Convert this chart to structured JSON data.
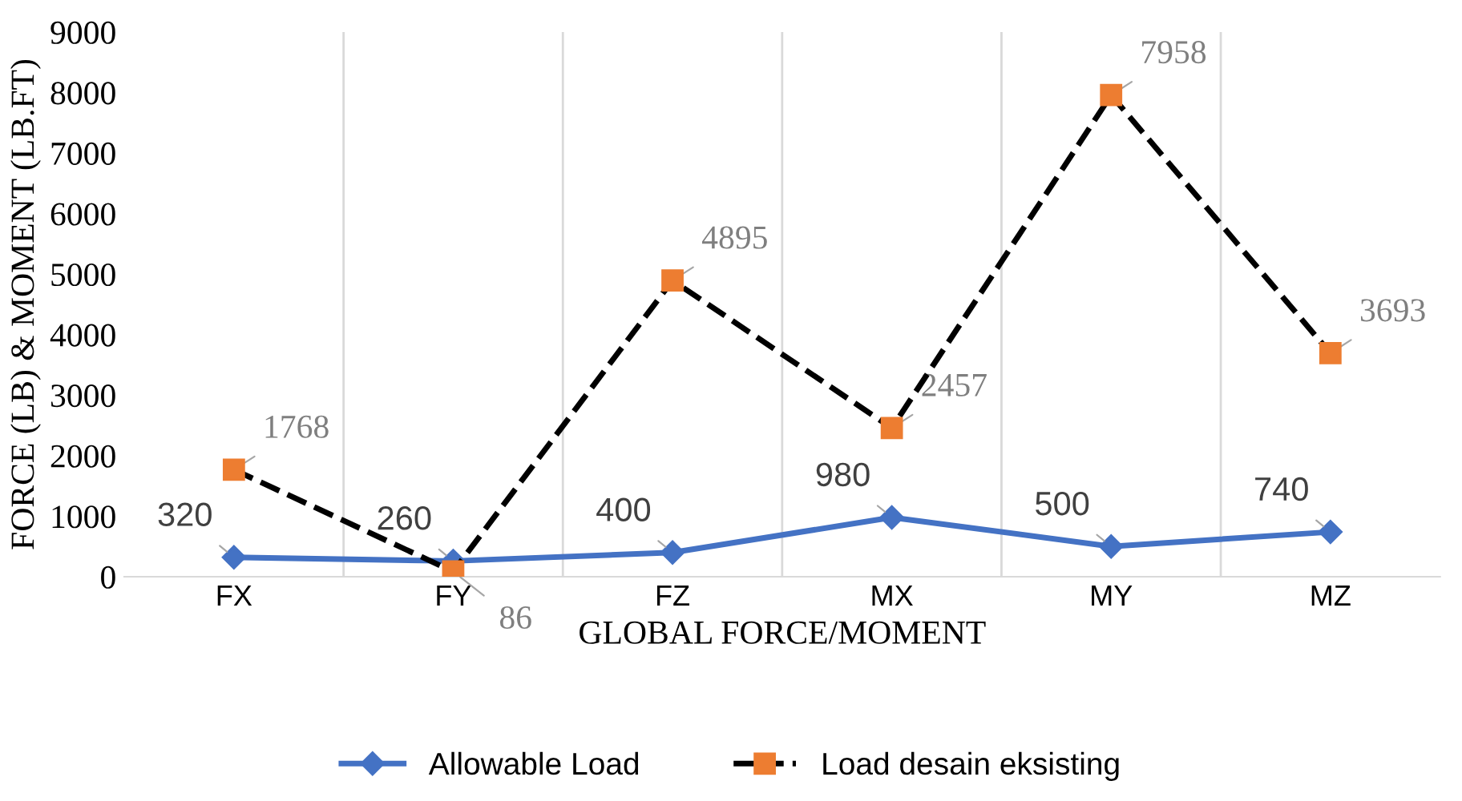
{
  "chart_data": {
    "type": "line",
    "xlabel": "GLOBAL FORCE/MOMENT",
    "ylabel": "FORCE (LB) & MOMENT (LB.FT)",
    "categories": [
      "FX",
      "FY",
      "FZ",
      "MX",
      "MY",
      "MZ"
    ],
    "series": [
      {
        "name": "Allowable Load",
        "color": "#4472c4",
        "marker": "diamond",
        "line_style": "solid",
        "values": [
          320,
          260,
          400,
          980,
          500,
          740
        ]
      },
      {
        "name": "Load desain eksisting",
        "color": "#000000",
        "marker": "square",
        "colors": [
          "#ed7d31",
          "#ed7d31",
          "#ed7d31",
          "#ed7d31",
          "#ed7d31",
          "#ed7d31"
        ],
        "line_style": "dashed",
        "values": [
          1768,
          86,
          4895,
          2457,
          7958,
          3693
        ]
      }
    ],
    "ylim": [
      0,
      9000
    ],
    "yticks": [
      0,
      1000,
      2000,
      3000,
      4000,
      5000,
      6000,
      7000,
      8000,
      9000
    ],
    "grid": "x",
    "legend": "bottom",
    "data_labels": true
  }
}
